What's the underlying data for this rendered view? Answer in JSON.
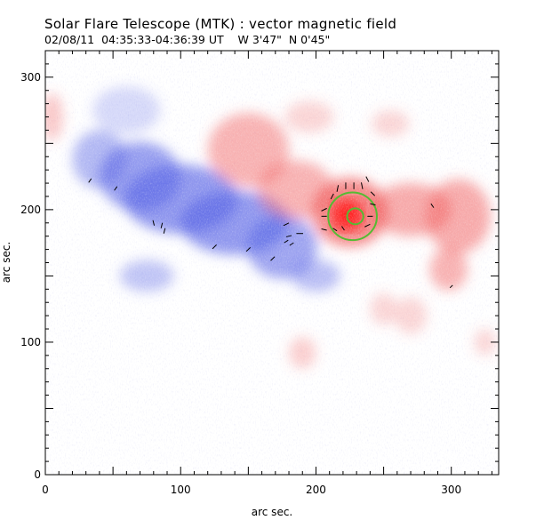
{
  "header": {
    "title": "Solar Flare Telescope (MTK) : vector magnetic field",
    "subtitle": "02/08/11  04:35:33-04:36:39 UT    W 3'47\"  N 0'45\""
  },
  "chart_data": {
    "type": "heatmap",
    "title": "Solar Flare Telescope (MTK) : vector magnetic field",
    "xlabel": "arc sec.",
    "ylabel": "arc sec.",
    "xlim": [
      0,
      335
    ],
    "ylim": [
      0,
      320
    ],
    "xticks": [
      0,
      100,
      200,
      300
    ],
    "yticks": [
      0,
      100,
      200,
      300
    ],
    "xtick_labels": [
      "0",
      "100",
      "200",
      "300"
    ],
    "ytick_labels": [
      "0",
      "100",
      "200",
      "300"
    ],
    "colors": {
      "negative_polarity": "#5a66e6",
      "positive_polarity": "#f05a5a",
      "strong_positive": "#ff2020",
      "contour": "#55bb33",
      "vector": "#000000"
    },
    "regions": [
      {
        "polarity": "negative",
        "cx": 40,
        "cy": 238,
        "rx": 20,
        "ry": 22,
        "strength": 0.55
      },
      {
        "polarity": "negative",
        "cx": 70,
        "cy": 225,
        "rx": 30,
        "ry": 26,
        "strength": 0.75
      },
      {
        "polarity": "negative",
        "cx": 100,
        "cy": 208,
        "rx": 42,
        "ry": 26,
        "strength": 0.8
      },
      {
        "polarity": "negative",
        "cx": 140,
        "cy": 190,
        "rx": 40,
        "ry": 24,
        "strength": 0.8
      },
      {
        "polarity": "negative",
        "cx": 175,
        "cy": 172,
        "rx": 26,
        "ry": 24,
        "strength": 0.7
      },
      {
        "polarity": "negative",
        "cx": 200,
        "cy": 150,
        "rx": 18,
        "ry": 12,
        "strength": 0.5
      },
      {
        "polarity": "negative",
        "cx": 75,
        "cy": 150,
        "rx": 20,
        "ry": 12,
        "strength": 0.45
      },
      {
        "polarity": "negative",
        "cx": 60,
        "cy": 275,
        "rx": 25,
        "ry": 18,
        "strength": 0.3
      },
      {
        "polarity": "positive",
        "cx": 150,
        "cy": 245,
        "rx": 30,
        "ry": 28,
        "strength": 0.55
      },
      {
        "polarity": "positive",
        "cx": 185,
        "cy": 215,
        "rx": 28,
        "ry": 22,
        "strength": 0.55
      },
      {
        "polarity": "positive",
        "cx": 225,
        "cy": 198,
        "rx": 28,
        "ry": 26,
        "strength": 0.85
      },
      {
        "polarity": "positive",
        "cx": 270,
        "cy": 200,
        "rx": 30,
        "ry": 20,
        "strength": 0.6
      },
      {
        "polarity": "positive",
        "cx": 305,
        "cy": 195,
        "rx": 24,
        "ry": 28,
        "strength": 0.6
      },
      {
        "polarity": "positive",
        "cx": 298,
        "cy": 155,
        "rx": 14,
        "ry": 16,
        "strength": 0.55
      },
      {
        "polarity": "positive",
        "cx": 195,
        "cy": 270,
        "rx": 18,
        "ry": 12,
        "strength": 0.3
      },
      {
        "polarity": "positive",
        "cx": 255,
        "cy": 265,
        "rx": 14,
        "ry": 10,
        "strength": 0.3
      },
      {
        "polarity": "positive",
        "cx": 270,
        "cy": 120,
        "rx": 12,
        "ry": 14,
        "strength": 0.3
      },
      {
        "polarity": "positive",
        "cx": 190,
        "cy": 92,
        "rx": 10,
        "ry": 12,
        "strength": 0.35
      },
      {
        "polarity": "positive",
        "cx": 250,
        "cy": 125,
        "rx": 10,
        "ry": 12,
        "strength": 0.3
      },
      {
        "polarity": "positive",
        "cx": 5,
        "cy": 270,
        "rx": 8,
        "ry": 18,
        "strength": 0.4
      },
      {
        "polarity": "positive",
        "cx": 325,
        "cy": 100,
        "rx": 8,
        "ry": 10,
        "strength": 0.3
      }
    ],
    "umbra": {
      "cx": 223,
      "cy": 196,
      "rx": 12,
      "ry": 12
    },
    "contours": [
      {
        "cx": 227,
        "cy": 195,
        "r": 18
      },
      {
        "cx": 229,
        "cy": 195,
        "r": 6
      }
    ],
    "vectors": [
      [
        33,
        222,
        2,
        3
      ],
      [
        52,
        216,
        2,
        3
      ],
      [
        80,
        190,
        -1,
        4
      ],
      [
        86,
        188,
        1,
        4
      ],
      [
        88,
        184,
        1,
        4
      ],
      [
        125,
        172,
        3,
        3
      ],
      [
        150,
        170,
        3,
        3
      ],
      [
        168,
        163,
        3,
        3
      ],
      [
        178,
        189,
        4,
        2
      ],
      [
        180,
        180,
        4,
        1
      ],
      [
        182,
        174,
        3,
        2
      ],
      [
        178,
        176,
        3,
        2
      ],
      [
        188,
        182,
        5,
        0
      ],
      [
        206,
        200,
        4,
        2
      ],
      [
        206,
        195,
        4,
        0
      ],
      [
        206,
        185,
        4,
        -1
      ],
      [
        212,
        210,
        2,
        4
      ],
      [
        216,
        216,
        1,
        5
      ],
      [
        222,
        218,
        0,
        5
      ],
      [
        228,
        218,
        0,
        5
      ],
      [
        234,
        218,
        -1,
        5
      ],
      [
        238,
        223,
        -2,
        4
      ],
      [
        242,
        212,
        -3,
        3
      ],
      [
        242,
        204,
        -4,
        1
      ],
      [
        240,
        195,
        -4,
        0
      ],
      [
        238,
        188,
        -4,
        -2
      ],
      [
        214,
        185,
        3,
        -2
      ],
      [
        220,
        186,
        2,
        -3
      ],
      [
        286,
        203,
        -2,
        3
      ],
      [
        300,
        142,
        2,
        2
      ]
    ]
  }
}
